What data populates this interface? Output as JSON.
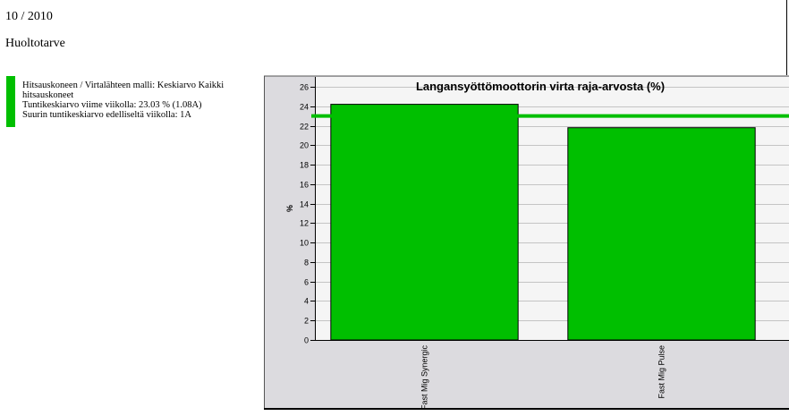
{
  "header": {
    "period": "10 / 2010",
    "section_title": "Huoltotarve"
  },
  "legend": {
    "lines": [
      "Hitsauskoneen / Virtalähteen malli: Keskiarvo Kaikki hitsauskoneet",
      "Tuntikeskiarvo viime viikolla: 23.03 % (1.08A)",
      "Suurin tuntikeskiarvo edelliseltä viikolla: 1A"
    ],
    "color": "#00bf00"
  },
  "chart_data": {
    "type": "bar",
    "title": "Langansyöttömoottorin virta raja-arvosta (%)",
    "xlabel": "",
    "ylabel": "%",
    "categories": [
      "Fast Mig Synergic",
      "Fast Mig Pulse"
    ],
    "values": [
      24.2,
      21.8
    ],
    "threshold": 23.0,
    "ylim": [
      0,
      26
    ],
    "yticks": [
      0,
      2,
      4,
      6,
      8,
      10,
      12,
      14,
      16,
      18,
      20,
      22,
      24,
      26
    ],
    "grid": true,
    "bar_color": "#00bf00",
    "threshold_color": "#00bf00"
  }
}
